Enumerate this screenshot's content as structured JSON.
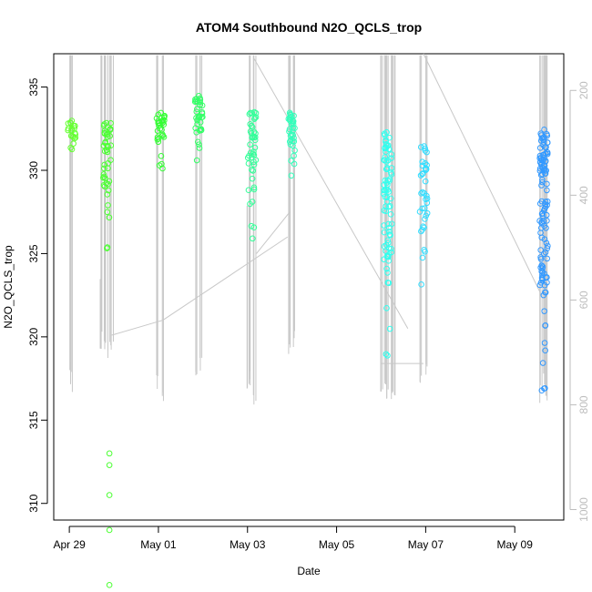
{
  "chart_data": {
    "type": "scatter",
    "title": "ATOM4 Southbound N2O_QCLS_trop",
    "xlabel": "Date",
    "ylabel": "N2O_QCLS_trop",
    "x_tick_labels": [
      "Apr 29",
      "May 01",
      "May 03",
      "May 05",
      "May 07",
      "May 09"
    ],
    "x_tick_days": [
      0,
      2,
      4,
      6,
      8,
      10
    ],
    "xlim_days": [
      -0.35,
      11.1
    ],
    "y_ticks": [
      310,
      315,
      320,
      325,
      330,
      335
    ],
    "ylim": [
      309,
      337
    ],
    "right_axis_ticks": [
      200,
      400,
      600,
      800,
      1000
    ],
    "right_axis_lim": [
      1020,
      130
    ],
    "profile_color": "#c8c8c8",
    "clusters": [
      {
        "name": "flight-1",
        "day": 0.05,
        "ymin": 331.0,
        "ymax": 333.0,
        "n": 18,
        "color": "#66ff33",
        "profiles": [
          {
            "x": 0.05,
            "top": 133,
            "bottom": 790
          },
          {
            "x": 0.03,
            "top": 133,
            "bottom": 755
          }
        ]
      },
      {
        "name": "flight-2",
        "day": 0.85,
        "ymin": 325,
        "ymax": 333,
        "n": 40,
        "color": "#4cff33",
        "outliers": [
          313,
          312.3,
          310.5,
          308.4,
          305.1
        ],
        "profiles": [
          {
            "x": 0.75,
            "top": 133,
            "bottom": 700
          },
          {
            "x": 0.8,
            "top": 133,
            "bottom": 710
          },
          {
            "x": 0.88,
            "top": 133,
            "bottom": 720
          },
          {
            "x": 0.95,
            "top": 133,
            "bottom": 710
          },
          {
            "x": 0.7,
            "top": 560,
            "bottom": 700
          }
        ]
      },
      {
        "name": "flight-3",
        "day": 2.05,
        "ymin": 330,
        "ymax": 333.5,
        "n": 28,
        "color": "#33ff33",
        "profiles": [
          {
            "x": 2.0,
            "top": 133,
            "bottom": 780
          },
          {
            "x": 2.1,
            "top": 133,
            "bottom": 810
          }
        ]
      },
      {
        "name": "flight-4",
        "day": 2.9,
        "ymin": 330.5,
        "ymax": 334.5,
        "n": 30,
        "color": "#33ff66",
        "profiles": [
          {
            "x": 2.85,
            "top": 133,
            "bottom": 760
          },
          {
            "x": 2.95,
            "top": 133,
            "bottom": 750
          }
        ]
      },
      {
        "name": "flight-5",
        "day": 4.1,
        "ymin": 325.5,
        "ymax": 333.5,
        "n": 38,
        "color": "#33ff99",
        "profiles": [
          {
            "x": 4.05,
            "top": 133,
            "bottom": 770
          },
          {
            "x": 4.15,
            "top": 133,
            "bottom": 810
          },
          {
            "x": 4.0,
            "top": 420,
            "bottom": 770
          }
        ]
      },
      {
        "name": "flight-6",
        "day": 5.0,
        "ymin": 329.5,
        "ymax": 333.5,
        "n": 30,
        "color": "#33ffbb",
        "profiles": [
          {
            "x": 4.95,
            "top": 133,
            "bottom": 710
          },
          {
            "x": 5.05,
            "top": 133,
            "bottom": 690
          }
        ]
      },
      {
        "name": "flight-7",
        "day": 7.15,
        "ymin": 318.5,
        "ymax": 332.5,
        "n": 70,
        "color": "#33ffee",
        "profiles": [
          {
            "x": 7.0,
            "top": 133,
            "bottom": 780
          },
          {
            "x": 7.08,
            "top": 133,
            "bottom": 790
          },
          {
            "x": 7.15,
            "top": 133,
            "bottom": 800
          },
          {
            "x": 7.22,
            "top": 133,
            "bottom": 810
          },
          {
            "x": 7.3,
            "top": 133,
            "bottom": 795
          }
        ]
      },
      {
        "name": "flight-8",
        "day": 7.95,
        "ymin": 322,
        "ymax": 331.5,
        "n": 32,
        "color": "#33ddff",
        "profiles": [
          {
            "x": 7.9,
            "top": 133,
            "bottom": 760
          },
          {
            "x": 8.0,
            "top": 133,
            "bottom": 750
          }
        ]
      },
      {
        "name": "flight-9",
        "day": 10.65,
        "ymin": 316.5,
        "ymax": 332.5,
        "n": 100,
        "color": "#3399ff",
        "profiles": [
          {
            "x": 10.6,
            "top": 133,
            "bottom": 800
          },
          {
            "x": 10.7,
            "top": 133,
            "bottom": 810
          },
          {
            "x": 10.65,
            "top": 133,
            "bottom": 780
          }
        ]
      }
    ],
    "transit_lines": [
      {
        "name": "transit-1",
        "points": [
          [
            0.95,
            320.1
          ],
          [
            2.1,
            321.0
          ]
        ]
      },
      {
        "name": "transit-2",
        "points": [
          [
            2.1,
            321.0
          ],
          [
            4.9,
            326.0
          ]
        ]
      },
      {
        "name": "transit-3",
        "points": [
          [
            4.15,
            336.7
          ],
          [
            7.6,
            320.5
          ]
        ]
      },
      {
        "name": "transit-4",
        "points": [
          [
            7.95,
            337.0
          ],
          [
            10.6,
            322.5
          ]
        ]
      },
      {
        "name": "transit-5",
        "points": [
          [
            7.0,
            318.4
          ],
          [
            7.95,
            318.4
          ]
        ]
      },
      {
        "name": "transit-6",
        "points": [
          [
            4.2,
            325.0
          ],
          [
            4.95,
            327.5
          ]
        ]
      }
    ]
  }
}
